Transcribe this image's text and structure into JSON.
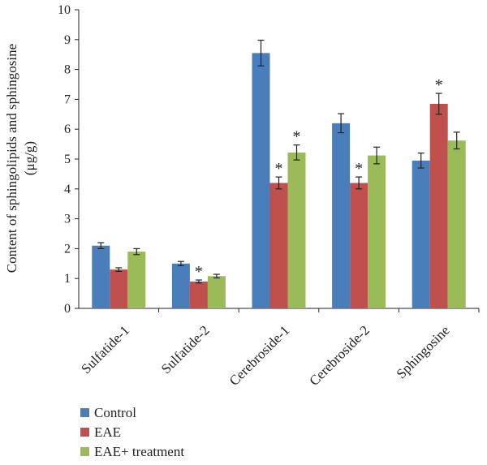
{
  "chart_data": {
    "type": "bar",
    "ylabel_line1": "Content of sphingolipids and sphingosine",
    "ylabel_line2": "(μg/g)",
    "ylim": [
      0,
      10
    ],
    "yticks": [
      "0",
      "1",
      "2",
      "3",
      "4",
      "5",
      "6",
      "7",
      "8",
      "9",
      "10"
    ],
    "categories": [
      "Sulfatide-1",
      "Sulfatide-2",
      "Cerebroside-1",
      "Cerebroside-2",
      "Sphingosine"
    ],
    "series": [
      {
        "name": "Control",
        "color": "#4a7ebb",
        "values": [
          2.1,
          1.5,
          8.55,
          6.2,
          4.95
        ],
        "errors": [
          0.1,
          0.07,
          0.43,
          0.32,
          0.25
        ],
        "significant": [
          false,
          false,
          false,
          false,
          false
        ]
      },
      {
        "name": "EAE",
        "color": "#c0504d",
        "values": [
          1.3,
          0.9,
          4.2,
          4.2,
          6.85
        ],
        "errors": [
          0.06,
          0.05,
          0.2,
          0.2,
          0.35
        ],
        "significant": [
          false,
          true,
          true,
          true,
          true
        ]
      },
      {
        "name": "EAE+ treatment",
        "color": "#9bbb59",
        "values": [
          1.9,
          1.08,
          5.22,
          5.12,
          5.62
        ],
        "errors": [
          0.1,
          0.06,
          0.25,
          0.28,
          0.28
        ],
        "significant": [
          false,
          false,
          true,
          false,
          false
        ]
      }
    ],
    "significance_marker": "*",
    "grid": false,
    "legend_position": "bottom-left"
  }
}
